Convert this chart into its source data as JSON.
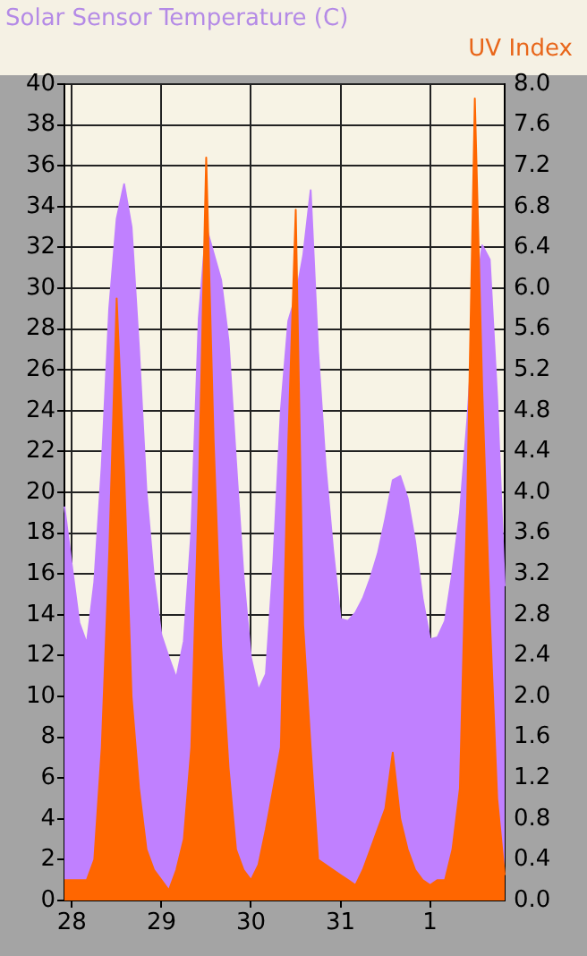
{
  "chart_data": {
    "type": "area",
    "ylabel": "Solar Sensor Temperature (C)",
    "y2label": "UV Index",
    "grid": true,
    "legend": false,
    "categories": [
      null,
      "28",
      null,
      null,
      null,
      null,
      null,
      null,
      null,
      null,
      null,
      null,
      null,
      "29",
      null,
      null,
      null,
      null,
      null,
      null,
      null,
      null,
      null,
      null,
      null,
      "30",
      null,
      null,
      null,
      null,
      null,
      null,
      null,
      null,
      null,
      null,
      null,
      "31",
      null,
      null,
      null,
      null,
      null,
      null,
      null,
      null,
      null,
      null,
      null,
      "1",
      null,
      null,
      null,
      null,
      null,
      null,
      null,
      null,
      null,
      null
    ],
    "ylim": [
      0,
      40
    ],
    "yticks": [
      0,
      2,
      4,
      6,
      8,
      10,
      12,
      14,
      16,
      18,
      20,
      22,
      24,
      26,
      28,
      30,
      32,
      34,
      36,
      38,
      40
    ],
    "y2lim": [
      0,
      8
    ],
    "y2ticks": [
      {
        "value": 0,
        "label": "0.0"
      },
      {
        "value": 0.4,
        "label": "0.4"
      },
      {
        "value": 0.8,
        "label": "0.8"
      },
      {
        "value": 1.2,
        "label": "1.2"
      },
      {
        "value": 1.6,
        "label": "1.6"
      },
      {
        "value": 2,
        "label": "2.0"
      },
      {
        "value": 2.4,
        "label": "2.4"
      },
      {
        "value": 2.8,
        "label": "2.8"
      },
      {
        "value": 3.2,
        "label": "3.2"
      },
      {
        "value": 3.6,
        "label": "3.6"
      },
      {
        "value": 4,
        "label": "4.0"
      },
      {
        "value": 4.4,
        "label": "4.4"
      },
      {
        "value": 4.8,
        "label": "4.8"
      },
      {
        "value": 5.2,
        "label": "5.2"
      },
      {
        "value": 5.6,
        "label": "5.6"
      },
      {
        "value": 6,
        "label": "6.0"
      },
      {
        "value": 6.4,
        "label": "6.4"
      },
      {
        "value": 6.8,
        "label": "6.8"
      },
      {
        "value": 7.2,
        "label": "7.2"
      },
      {
        "value": 7.6,
        "label": "7.6"
      },
      {
        "value": 8,
        "label": "8.0"
      }
    ],
    "series": [
      {
        "color": "#c080ff",
        "values": [
          19.3,
          16.4,
          13.6,
          12.6,
          15.6,
          21.3,
          29,
          33.4,
          35.1,
          33,
          27,
          20,
          15.8,
          13,
          11.9,
          10.9,
          12.7,
          18,
          28.5,
          33,
          31.7,
          30.4,
          27.4,
          21.5,
          15.9,
          11.9,
          10.3,
          11.1,
          16.6,
          24,
          28.4,
          29.6,
          31.6,
          34.8,
          26.9,
          21.3,
          17.2,
          13.8,
          13.7,
          14.1,
          14.8,
          15.8,
          17,
          18.7,
          20.6,
          20.8,
          19.7,
          17.6,
          14.8,
          12.8,
          12.9,
          13.7,
          16.1,
          19,
          23.6,
          29.2,
          32.1,
          31.4,
          24.6,
          15.4
        ]
      },
      {
        "color": "#ff6600",
        "axis": "y2",
        "values": [
          0.2,
          0.2,
          0.2,
          0.2,
          0.4,
          1.5,
          3.4,
          5.9,
          4.2,
          2,
          1.1,
          0.5,
          0.3,
          0.2,
          0.1,
          0.3,
          0.6,
          1.5,
          4,
          7.28,
          4.5,
          2.5,
          1.3,
          0.5,
          0.3,
          0.2,
          0.35,
          0.7,
          1.1,
          1.5,
          4.5,
          6.77,
          2.7,
          1.5,
          0.4,
          0.35,
          0.3,
          0.25,
          0.2,
          0.15,
          0.3,
          0.5,
          0.7,
          0.9,
          1.45,
          0.8,
          0.5,
          0.3,
          0.2,
          0.15,
          0.2,
          0.2,
          0.5,
          1.1,
          4,
          7.86,
          5,
          2.8,
          1,
          0.25
        ]
      }
    ]
  }
}
